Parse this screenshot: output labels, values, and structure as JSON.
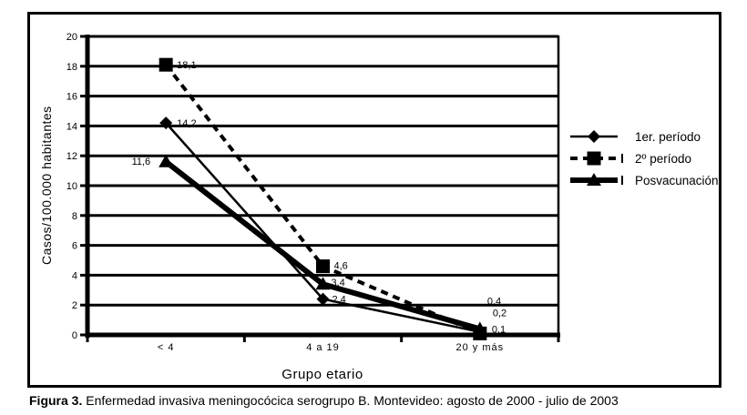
{
  "figure": {
    "caption_label": "Figura 3.",
    "caption_text": " Enfermedad invasiva meningocócica serogrupo B. Montevideo: agosto de 2000 - julio de 2003"
  },
  "chart_data": {
    "type": "line",
    "title": "",
    "xlabel": "Grupo etario",
    "ylabel": "Casos/100.000 habitantes",
    "categories": [
      "< 4",
      "4 a 19",
      "20 y más"
    ],
    "ylim": [
      0,
      20
    ],
    "yticks": [
      0,
      2,
      4,
      6,
      8,
      10,
      12,
      14,
      16,
      18,
      20
    ],
    "grid": "horizontal",
    "legend_position": "right",
    "decimal_separator": ",",
    "colors": {
      "foreground": "#000000",
      "background": "#ffffff"
    },
    "series": [
      {
        "name": "1er. período",
        "marker": "diamond",
        "line": "solid-thin",
        "values": [
          14.2,
          2.4,
          0.2
        ],
        "labels": [
          "14,2",
          "2,4",
          "0,2"
        ]
      },
      {
        "name": "2º período",
        "marker": "square",
        "line": "dashed",
        "values": [
          18.1,
          4.6,
          0.1
        ],
        "labels": [
          "18,1",
          "4,6",
          "0,1"
        ]
      },
      {
        "name": "Posvacunación",
        "marker": "triangle",
        "line": "solid-thick",
        "values": [
          11.6,
          3.4,
          0.4
        ],
        "labels": [
          "11,6",
          "3,4",
          "0,4"
        ]
      }
    ]
  }
}
